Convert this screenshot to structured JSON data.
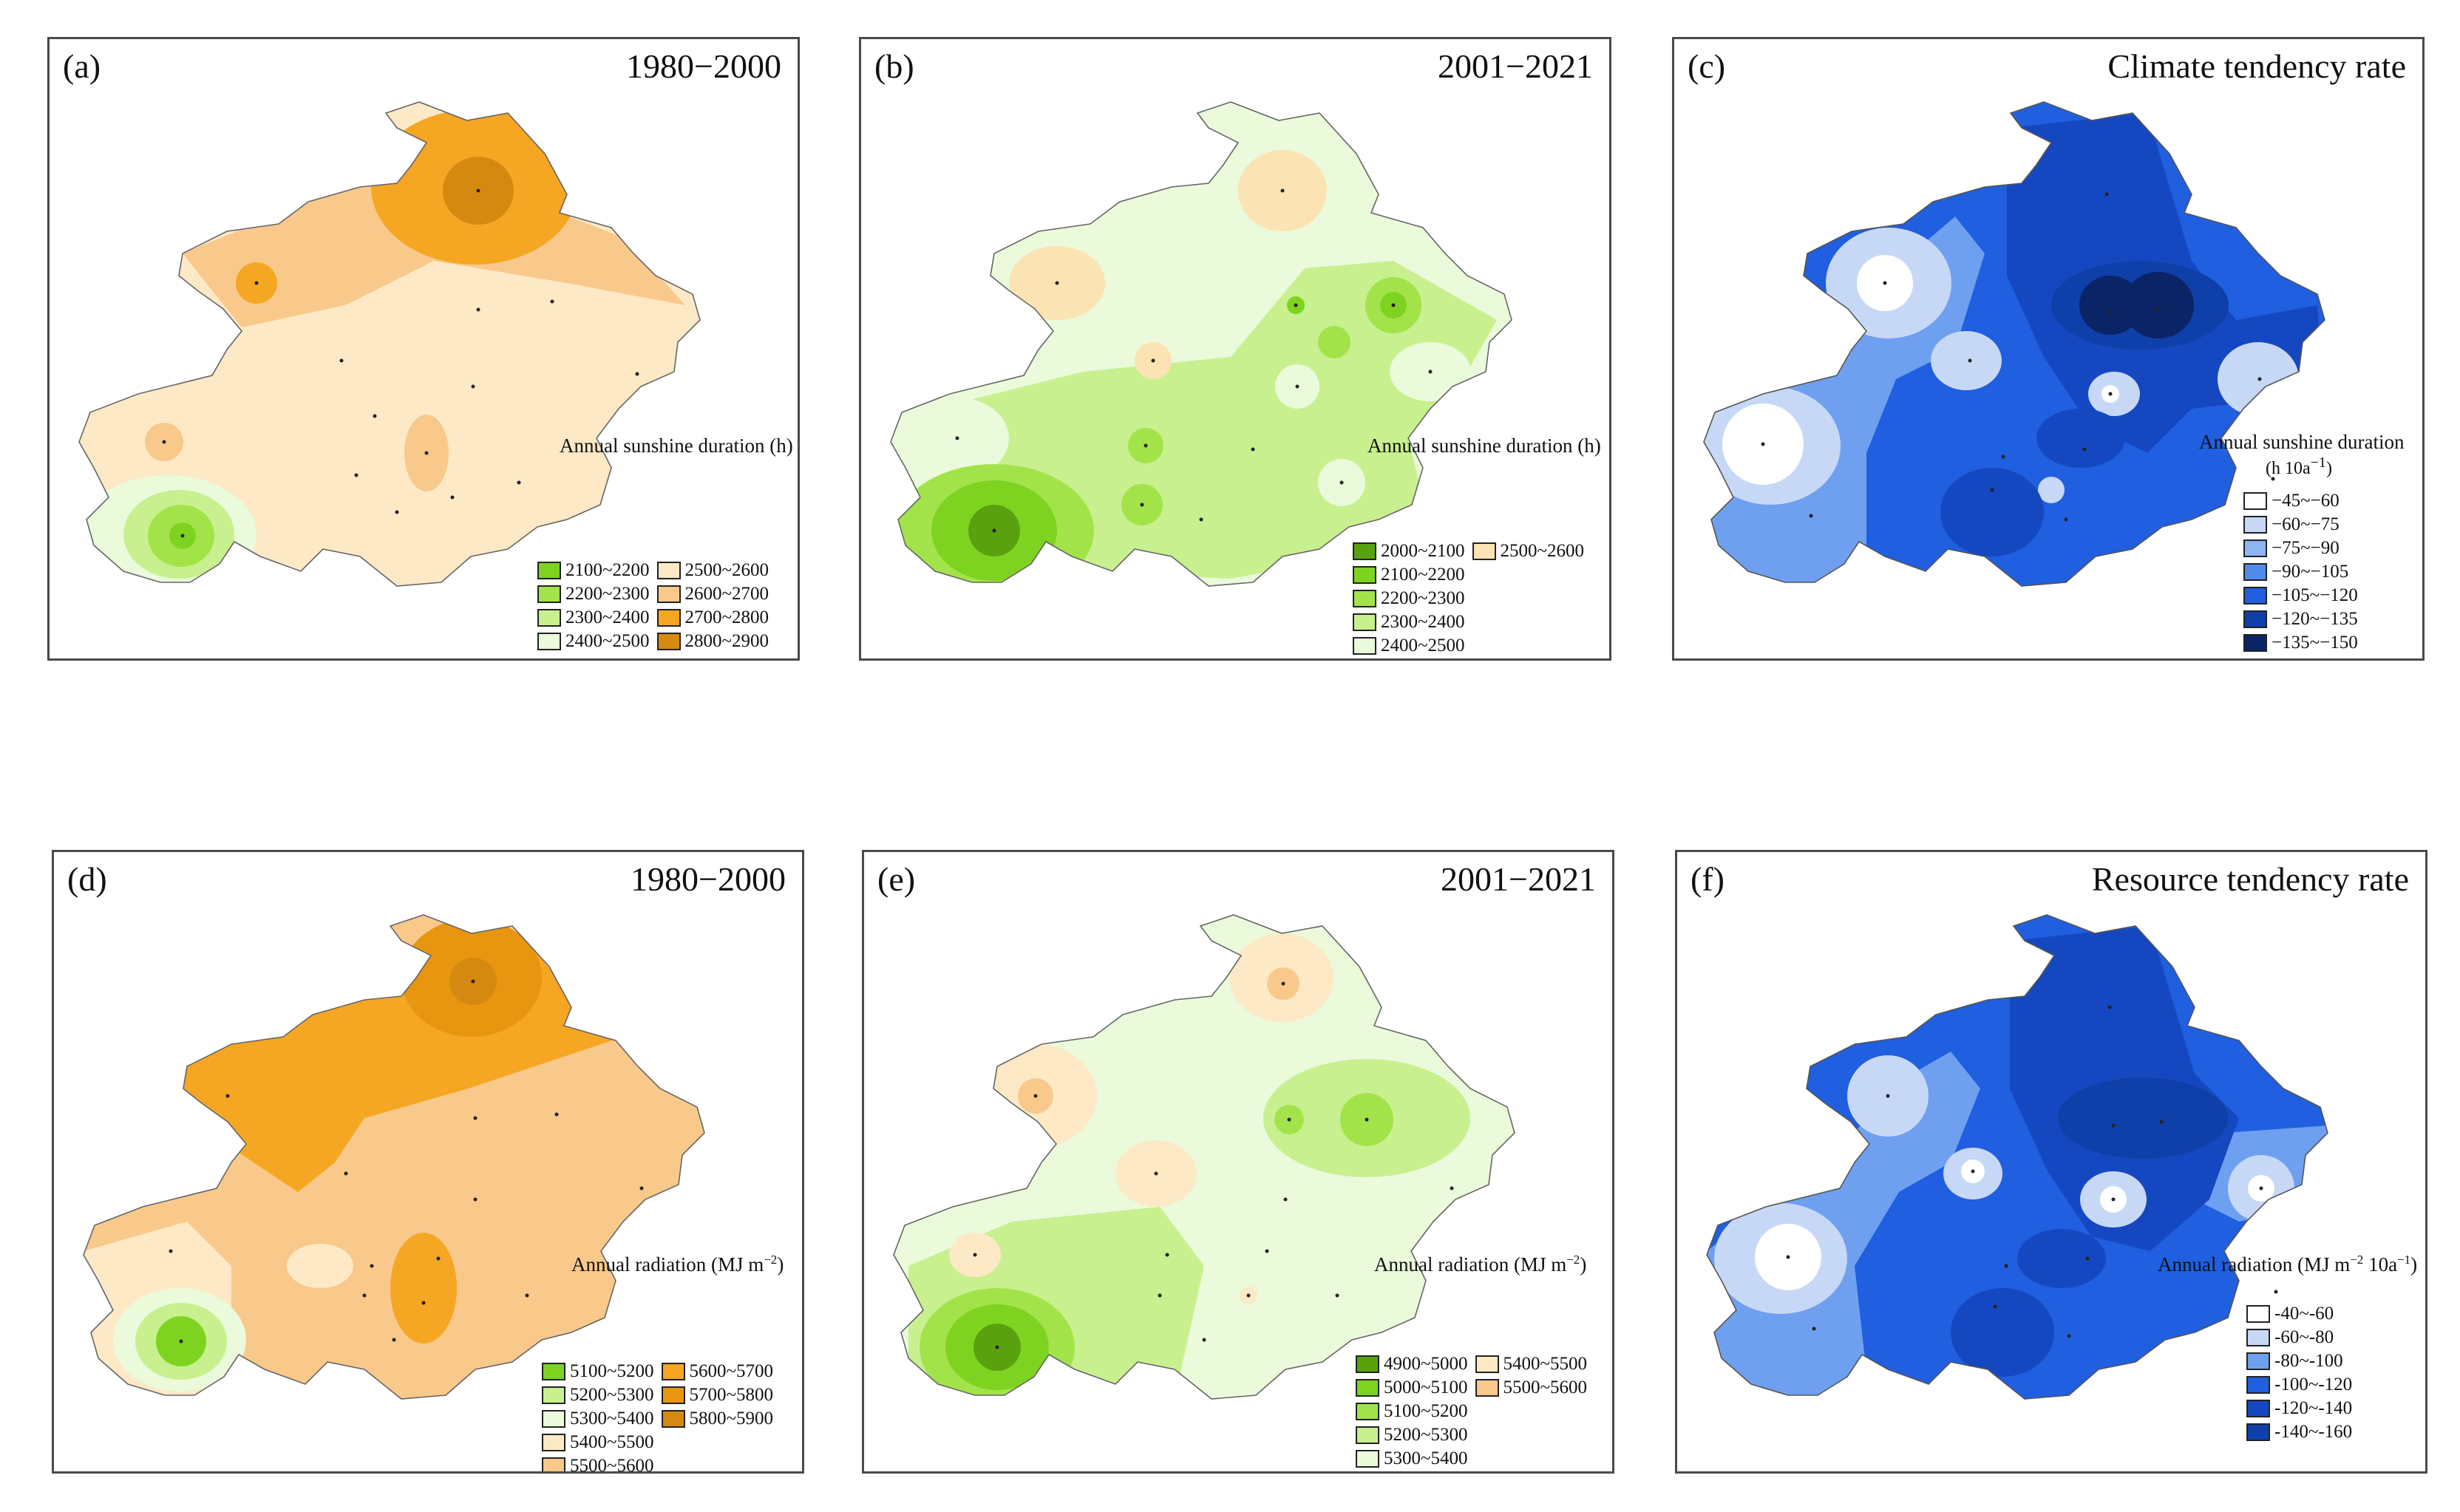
{
  "palettes": {
    "map_ab": {
      "bg": "#fce3b3",
      "low": "#7ed321",
      "mid": "#dff7b8",
      "warm": "#f9c98b",
      "hot": "#f5a623",
      "peak": "#d68910"
    },
    "map_ce": {
      "bg": "#e6f9c8",
      "low": "#5aa10f",
      "mid": "#b7ec5a",
      "pale": "#f3fbe7",
      "warm": "#fce3b3"
    },
    "map_cf": {
      "bg": "#1f5fe0",
      "light": "#6fa0f0",
      "pale": "#c7d8f7",
      "white": "#ffffff",
      "dark": "#0f3fa8"
    }
  },
  "panels": {
    "a": {
      "label": "(a)",
      "title": "1980−2000",
      "variable": "Annual sunshine duration (h)",
      "legend": [
        {
          "range": "2100~2200",
          "color": "#7ed321"
        },
        {
          "range": "2200~2300",
          "color": "#a3e34a"
        },
        {
          "range": "2300~2400",
          "color": "#c8f08f"
        },
        {
          "range": "2400~2500",
          "color": "#eafadb"
        },
        {
          "range": "2500~2600",
          "color": "#fde9c6"
        },
        {
          "range": "2600~2700",
          "color": "#f9c98b"
        },
        {
          "range": "2700~2800",
          "color": "#f5a623"
        },
        {
          "range": "2800~2900",
          "color": "#d68910"
        }
      ]
    },
    "b": {
      "label": "(b)",
      "title": "2001−2021",
      "variable": "Annual sunshine duration (h)",
      "legend": [
        {
          "range": "2000~2100",
          "color": "#5aa10f"
        },
        {
          "range": "2100~2200",
          "color": "#7ed321"
        },
        {
          "range": "2200~2300",
          "color": "#a3e34a"
        },
        {
          "range": "2300~2400",
          "color": "#c8f08f"
        },
        {
          "range": "2400~2500",
          "color": "#eafadb"
        },
        {
          "range": "2500~2600",
          "color": "#fce3b3"
        }
      ]
    },
    "c": {
      "label": "(c)",
      "title": "Climate tendency rate",
      "variable": "Annual sunshine duration",
      "unit_base": "(h 10a",
      "unit_exp": "−1",
      "unit_close": ")",
      "legend": [
        {
          "range": "−45~−60",
          "color": "#ffffff"
        },
        {
          "range": "−60~−75",
          "color": "#c7d8f7"
        },
        {
          "range": "−75~−90",
          "color": "#8fb4f2"
        },
        {
          "range": "−90~−105",
          "color": "#4f8ae8"
        },
        {
          "range": "−105~−120",
          "color": "#1f5fe0"
        },
        {
          "range": "−120~−135",
          "color": "#0f3fa8"
        },
        {
          "range": "−135~−150",
          "color": "#0a2466"
        }
      ]
    },
    "d": {
      "label": "(d)",
      "title": "1980−2000",
      "variable": "Annual radiation (MJ m",
      "var_exp": "−2",
      "var_close": ")",
      "legend": [
        {
          "range": "5100~5200",
          "color": "#7ed321"
        },
        {
          "range": "5200~5300",
          "color": "#c8f08f"
        },
        {
          "range": "5300~5400",
          "color": "#eafadb"
        },
        {
          "range": "5400~5500",
          "color": "#fde9c6"
        },
        {
          "range": "5500~5600",
          "color": "#f9c98b"
        },
        {
          "range": "5600~5700",
          "color": "#f5a623"
        },
        {
          "range": "5700~5800",
          "color": "#e8950f"
        },
        {
          "range": "5800~5900",
          "color": "#d68910"
        }
      ]
    },
    "e": {
      "label": "(e)",
      "title": "2001−2021",
      "variable": "Annual radiation (MJ m",
      "var_exp": "−2",
      "var_close": ")",
      "legend": [
        {
          "range": "4900~5000",
          "color": "#5aa10f"
        },
        {
          "range": "5000~5100",
          "color": "#7ed321"
        },
        {
          "range": "5100~5200",
          "color": "#a3e34a"
        },
        {
          "range": "5200~5300",
          "color": "#c8f08f"
        },
        {
          "range": "5300~5400",
          "color": "#eafadb"
        },
        {
          "range": "5400~5500",
          "color": "#fde9c6"
        },
        {
          "range": "5500~5600",
          "color": "#f9c98b"
        }
      ]
    },
    "f": {
      "label": "(f)",
      "title": "Resource tendency rate",
      "variable": "Annual radiation (MJ m",
      "var_exp": "−2",
      "var_mid": " 10a",
      "var_exp2": "−1",
      "var_close": ")",
      "legend": [
        {
          "range": "-40~-60",
          "color": "#ffffff"
        },
        {
          "range": "-60~-80",
          "color": "#c7d8f7"
        },
        {
          "range": "-80~-100",
          "color": "#6fa0f0"
        },
        {
          "range": "-100~-120",
          "color": "#1f5fe0"
        },
        {
          "range": "-120~-140",
          "color": "#1548c0"
        },
        {
          "range": "-140~-160",
          "color": "#0f3fa8"
        }
      ]
    }
  }
}
